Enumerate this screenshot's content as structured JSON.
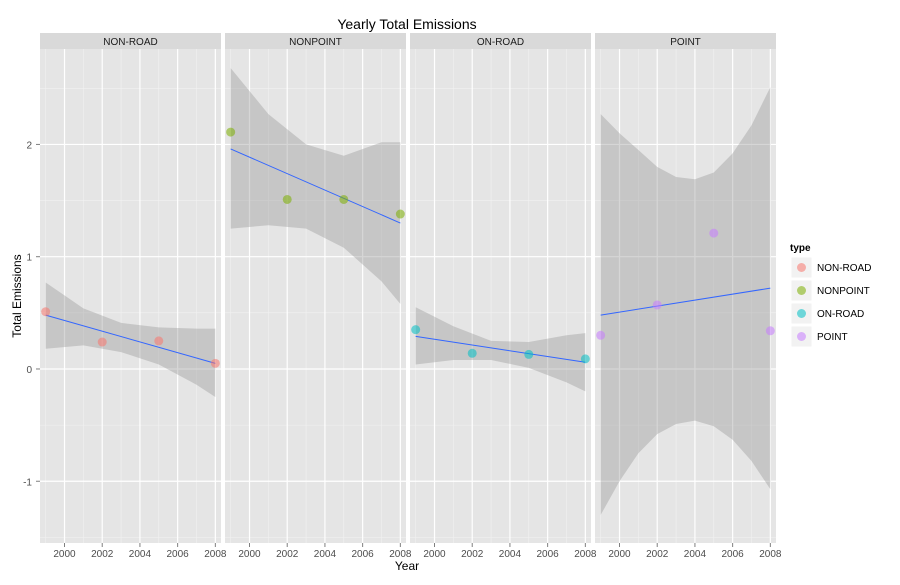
{
  "chart_data": {
    "type": "scatter",
    "title": "Yearly Total Emissions",
    "xlabel": "Year",
    "ylabel": "Total Emissions",
    "xlim": [
      1998.7,
      2008.3
    ],
    "ylim": [
      -1.55,
      2.85
    ],
    "x_ticks": [
      2000,
      2002,
      2004,
      2006,
      2008
    ],
    "y_ticks": [
      -1,
      0,
      1,
      2
    ],
    "grid": true,
    "legend_position": "right",
    "legend": {
      "title": "type",
      "entries": [
        "NON-ROAD",
        "NONPOINT",
        "ON-ROAD",
        "POINT"
      ]
    },
    "facets": [
      {
        "name": "NON-ROAD",
        "color": "#F8766D",
        "x": [
          1999,
          2002,
          2005,
          2008
        ],
        "y": [
          0.51,
          0.24,
          0.25,
          0.05
        ],
        "fit": {
          "x": [
            1999,
            2008
          ],
          "y": [
            0.48,
            0.05
          ]
        },
        "ci": {
          "x": [
            1999,
            2001,
            2003,
            2005,
            2007,
            2008
          ],
          "lower": [
            0.18,
            0.21,
            0.15,
            0.04,
            -0.14,
            -0.25
          ],
          "upper": [
            0.77,
            0.54,
            0.41,
            0.37,
            0.36,
            0.36
          ]
        }
      },
      {
        "name": "NONPOINT",
        "color": "#7CAE00",
        "x": [
          1999,
          2002,
          2005,
          2008
        ],
        "y": [
          2.11,
          1.51,
          1.51,
          1.38
        ],
        "fit": {
          "x": [
            1999,
            2008
          ],
          "y": [
            1.96,
            1.3
          ]
        },
        "ci": {
          "x": [
            1999,
            2001,
            2003,
            2005,
            2007,
            2008
          ],
          "lower": [
            1.25,
            1.28,
            1.25,
            1.08,
            0.78,
            0.58
          ],
          "upper": [
            2.68,
            2.27,
            2.0,
            1.9,
            2.02,
            2.02
          ]
        }
      },
      {
        "name": "ON-ROAD",
        "color": "#00BFC4",
        "x": [
          1999,
          2002,
          2005,
          2008
        ],
        "y": [
          0.35,
          0.14,
          0.13,
          0.09
        ],
        "fit": {
          "x": [
            1999,
            2008
          ],
          "y": [
            0.29,
            0.06
          ]
        },
        "ci": {
          "x": [
            1999,
            2001,
            2003,
            2005,
            2007,
            2008
          ],
          "lower": [
            0.04,
            0.08,
            0.08,
            0.01,
            -0.12,
            -0.2
          ],
          "upper": [
            0.55,
            0.38,
            0.25,
            0.24,
            0.3,
            0.32
          ]
        }
      },
      {
        "name": "POINT",
        "color": "#C77CFF",
        "x": [
          1999,
          2002,
          2005,
          2008
        ],
        "y": [
          0.3,
          0.57,
          1.21,
          0.34
        ],
        "fit": {
          "x": [
            1999,
            2008
          ],
          "y": [
            0.48,
            0.72
          ]
        },
        "ci": {
          "x": [
            1999,
            2000,
            2001,
            2002,
            2003,
            2004,
            2005,
            2006,
            2007,
            2008
          ],
          "lower": [
            -1.3,
            -1.0,
            -0.75,
            -0.58,
            -0.49,
            -0.46,
            -0.51,
            -0.63,
            -0.82,
            -1.07
          ],
          "upper": [
            2.27,
            2.1,
            1.95,
            1.8,
            1.71,
            1.69,
            1.75,
            1.92,
            2.17,
            2.51
          ]
        }
      }
    ]
  }
}
